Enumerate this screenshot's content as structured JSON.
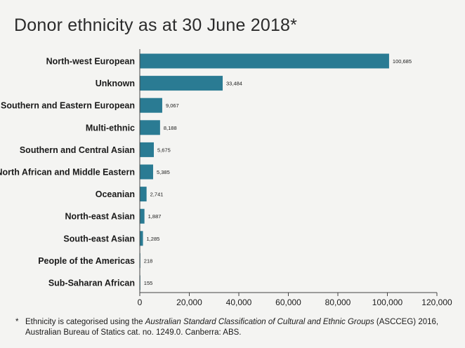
{
  "chart_data": {
    "type": "bar",
    "orientation": "horizontal",
    "title": "Donor ethnicity as at 30 June 2018*",
    "xlabel": "",
    "ylabel": "",
    "xlim": [
      0,
      120000
    ],
    "x_ticks": [
      "0",
      "20,000",
      "40,000",
      "60,000",
      "80,000",
      "100,000",
      "120,000"
    ],
    "x_tick_values": [
      0,
      20000,
      40000,
      60000,
      80000,
      100000,
      120000
    ],
    "bar_color": "#2a7b93",
    "grid": false,
    "categories": [
      "North-west European",
      "Unknown",
      "Southern and Eastern European",
      "Multi-ethnic",
      "Southern and Central Asian",
      "North African and Middle Eastern",
      "Oceanian",
      "North-east Asian",
      "South-east Asian",
      "People of the Americas",
      "Sub-Saharan African"
    ],
    "values": [
      100685,
      33484,
      9067,
      8188,
      5675,
      5385,
      2741,
      1887,
      1285,
      218,
      155
    ],
    "value_labels": [
      "100,685",
      "33,484",
      "9,067",
      "8,188",
      "5,675",
      "5,385",
      "2,741",
      "1,887",
      "1,285",
      "218",
      "155"
    ]
  },
  "footnote": {
    "star": "*",
    "text_before": "Ethnicity is categorised using the ",
    "text_italic": "Australian Standard Classification of Cultural and Ethnic Groups",
    "text_after": " (ASCCEG) 2016, Australian Bureau of Statics cat. no. 1249.0. Canberra: ABS."
  }
}
